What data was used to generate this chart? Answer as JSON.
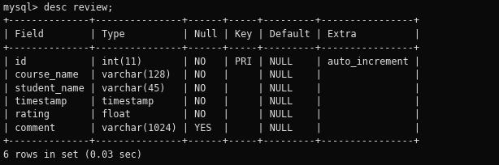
{
  "bg_color": "#0a0a0a",
  "text_color": "#e0e0e0",
  "prompt_text": "mysql> desc review;",
  "footer_text": "6 rows in set (0.03 sec)",
  "sep_line": "+--------------+---------------+------+-----+---------+----------------+",
  "header_line": "| Field        | Type          | Null | Key | Default | Extra          |",
  "data_lines": [
    "| id           | int(11)       | NO   | PRI | NULL    | auto_increment |",
    "| course_name  | varchar(128)  | NO   |     | NULL    |                |",
    "| student_name | varchar(45)   | NO   |     | NULL    |                |",
    "| timestamp    | timestamp     | NO   |     | NULL    |                |",
    "| rating       | float         | NO   |     | NULL    |                |",
    "| comment      | varchar(1024) | YES  |     | NULL    |                |"
  ],
  "font_size": 8.5,
  "monospace_font": "DejaVu Sans Mono",
  "fig_width": 6.14,
  "fig_height": 2.04,
  "dpi": 100
}
